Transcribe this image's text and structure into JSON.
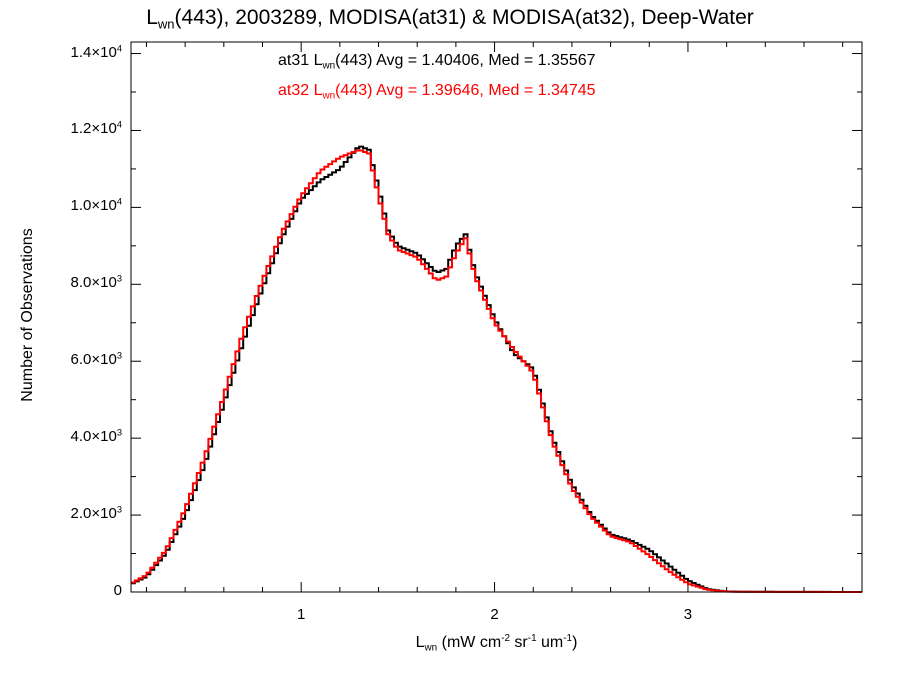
{
  "chart_data": {
    "type": "line",
    "title": {
      "main": "L",
      "sub": "wn",
      "rest": "(443), 2003289, MODISA(at31) & MODISA(at32), Deep-Water"
    },
    "xlabel": {
      "main": "L",
      "sub": "wn",
      "p1": " (mW cm",
      "s1": "-2",
      "p2": " sr",
      "s2": "-1",
      "p3": " um",
      "s3": "-1",
      "p4": ")"
    },
    "ylabel": "Number of Observations",
    "xlim": [
      0.12,
      3.9
    ],
    "ylim": [
      0,
      14300
    ],
    "x_ticks": [
      {
        "value": 1,
        "label": "1"
      },
      {
        "value": 2,
        "label": "2"
      },
      {
        "value": 3,
        "label": "3"
      }
    ],
    "y_ticks": [
      {
        "value": 0,
        "mant": "0",
        "exp": ""
      },
      {
        "value": 2000,
        "mant": "2.0×10",
        "exp": "3"
      },
      {
        "value": 4000,
        "mant": "4.0×10",
        "exp": "3"
      },
      {
        "value": 6000,
        "mant": "6.0×10",
        "exp": "3"
      },
      {
        "value": 8000,
        "mant": "8.0×10",
        "exp": "3"
      },
      {
        "value": 10000,
        "mant": "1.0×10",
        "exp": "4"
      },
      {
        "value": 12000,
        "mant": "1.2×10",
        "exp": "4"
      },
      {
        "value": 14000,
        "mant": "1.4×10",
        "exp": "4"
      }
    ],
    "legend": [
      {
        "pre": "at31 L",
        "sub": "wn",
        "post": "(443) Avg = 1.40406, Med = 1.35567",
        "color": "#000000"
      },
      {
        "pre": "at32 L",
        "sub": "wn",
        "post": "(443) Avg = 1.39646, Med = 1.34745",
        "color": "#ff0000"
      }
    ],
    "series": [
      {
        "color": "#000000",
        "points": [
          [
            0.12,
            200
          ],
          [
            0.2,
            400
          ],
          [
            0.3,
            1000
          ],
          [
            0.4,
            2000
          ],
          [
            0.5,
            3300
          ],
          [
            0.6,
            4900
          ],
          [
            0.7,
            6500
          ],
          [
            0.8,
            7900
          ],
          [
            0.9,
            9200
          ],
          [
            1.0,
            10200
          ],
          [
            1.1,
            10700
          ],
          [
            1.2,
            11000
          ],
          [
            1.3,
            11600
          ],
          [
            1.35,
            11500
          ],
          [
            1.4,
            10500
          ],
          [
            1.45,
            9400
          ],
          [
            1.5,
            9000
          ],
          [
            1.6,
            8800
          ],
          [
            1.7,
            8300
          ],
          [
            1.75,
            8400
          ],
          [
            1.8,
            9000
          ],
          [
            1.85,
            9300
          ],
          [
            1.9,
            8300
          ],
          [
            2.0,
            7100
          ],
          [
            2.1,
            6200
          ],
          [
            2.2,
            5800
          ],
          [
            2.3,
            4000
          ],
          [
            2.4,
            2800
          ],
          [
            2.5,
            2000
          ],
          [
            2.6,
            1500
          ],
          [
            2.7,
            1350
          ],
          [
            2.8,
            1100
          ],
          [
            2.9,
            700
          ],
          [
            3.0,
            300
          ],
          [
            3.1,
            80
          ],
          [
            3.2,
            15
          ],
          [
            3.3,
            5
          ],
          [
            3.9,
            0
          ]
        ]
      },
      {
        "color": "#ff0000",
        "points": [
          [
            0.12,
            220
          ],
          [
            0.2,
            440
          ],
          [
            0.3,
            1080
          ],
          [
            0.4,
            2150
          ],
          [
            0.5,
            3500
          ],
          [
            0.6,
            5100
          ],
          [
            0.7,
            6750
          ],
          [
            0.8,
            8100
          ],
          [
            0.9,
            9350
          ],
          [
            1.0,
            10300
          ],
          [
            1.1,
            10950
          ],
          [
            1.2,
            11300
          ],
          [
            1.3,
            11500
          ],
          [
            1.35,
            11400
          ],
          [
            1.4,
            10300
          ],
          [
            1.45,
            9300
          ],
          [
            1.5,
            8900
          ],
          [
            1.6,
            8700
          ],
          [
            1.7,
            8100
          ],
          [
            1.75,
            8200
          ],
          [
            1.8,
            8800
          ],
          [
            1.85,
            9200
          ],
          [
            1.9,
            8200
          ],
          [
            2.0,
            7000
          ],
          [
            2.1,
            6300
          ],
          [
            2.2,
            5700
          ],
          [
            2.3,
            3900
          ],
          [
            2.4,
            2700
          ],
          [
            2.5,
            1950
          ],
          [
            2.6,
            1450
          ],
          [
            2.7,
            1300
          ],
          [
            2.8,
            950
          ],
          [
            2.9,
            550
          ],
          [
            3.0,
            220
          ],
          [
            3.1,
            60
          ],
          [
            3.2,
            10
          ],
          [
            3.3,
            4
          ],
          [
            3.9,
            0
          ]
        ]
      }
    ]
  }
}
